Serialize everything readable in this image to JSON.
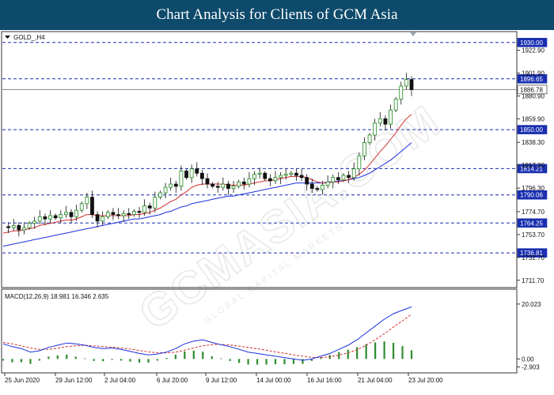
{
  "banner": {
    "title": "Chart Analysis for Clients of GCM Asia"
  },
  "chart_data": [
    {
      "type": "candlestick",
      "title": "GOLD_,H4",
      "symbol": "GOLD_",
      "timeframe": "H4",
      "ylim": [
        1705.0,
        1940.0
      ],
      "y_ticks": [
        "1922.90",
        "1901.90",
        "1880.90",
        "1859.90",
        "1838.30",
        "1817.30",
        "1796.30",
        "1774.70",
        "1753.70",
        "1732.70",
        "1711.70"
      ],
      "levels": [
        {
          "value": 1930.0,
          "label": "1930.00",
          "style": "dashed",
          "color": "#1a2fb0"
        },
        {
          "value": 1896.65,
          "label": "1896.65",
          "style": "dashed",
          "color": "#1a2fb0"
        },
        {
          "value": 1886.78,
          "label": "1886.78",
          "style": "solid",
          "color": "#888888",
          "current": true
        },
        {
          "value": 1850.0,
          "label": "1850.00",
          "style": "dashed",
          "color": "#1a2fb0"
        },
        {
          "value": 1814.21,
          "label": "1814.21",
          "style": "dashed",
          "color": "#1a2fb0"
        },
        {
          "value": 1790.06,
          "label": "1790.06",
          "style": "dashed",
          "color": "#1a2fb0"
        },
        {
          "value": 1764.25,
          "label": "1764.25",
          "style": "dashed",
          "color": "#1a2fb0"
        },
        {
          "value": 1736.81,
          "label": "1736.81",
          "style": "dashed",
          "color": "#1a2fb0"
        }
      ],
      "close_path": [
        1761,
        1760,
        1762,
        1758,
        1760,
        1764,
        1766,
        1770,
        1768,
        1771,
        1769,
        1772,
        1774,
        1770,
        1776,
        1782,
        1788,
        1772,
        1766,
        1770,
        1774,
        1772,
        1771,
        1773,
        1772,
        1775,
        1774,
        1780,
        1778,
        1788,
        1792,
        1797,
        1800,
        1798,
        1812,
        1806,
        1814,
        1810,
        1805,
        1800,
        1798,
        1797,
        1800,
        1796,
        1798,
        1802,
        1800,
        1805,
        1809,
        1810,
        1805,
        1803,
        1806,
        1808,
        1809,
        1810,
        1808,
        1806,
        1800,
        1796,
        1795,
        1799,
        1802,
        1806,
        1804,
        1808,
        1806,
        1814,
        1826,
        1838,
        1845,
        1856,
        1860,
        1855,
        1868,
        1878,
        1890,
        1896,
        1886.78
      ],
      "ma_fast": [
        1755,
        1756,
        1757,
        1757,
        1758,
        1759,
        1760,
        1762,
        1763,
        1764,
        1765,
        1766,
        1767,
        1767,
        1768,
        1770,
        1772,
        1772,
        1771,
        1771,
        1771,
        1771,
        1771,
        1771,
        1771,
        1772,
        1772,
        1773,
        1774,
        1776,
        1778,
        1781,
        1784,
        1786,
        1790,
        1793,
        1797,
        1799,
        1800,
        1800,
        1800,
        1800,
        1800,
        1799,
        1799,
        1799,
        1799,
        1800,
        1801,
        1802,
        1803,
        1803,
        1804,
        1805,
        1806,
        1807,
        1807,
        1807,
        1806,
        1804,
        1802,
        1801,
        1801,
        1802,
        1802,
        1803,
        1804,
        1806,
        1809,
        1813,
        1818,
        1824,
        1830,
        1835,
        1841,
        1847,
        1854,
        1860,
        1864
      ],
      "ma_slow": [
        1743,
        1744,
        1745,
        1746,
        1747,
        1748,
        1749,
        1750,
        1751,
        1752,
        1753,
        1754,
        1755,
        1756,
        1757,
        1758,
        1759,
        1760,
        1761,
        1762,
        1763,
        1764,
        1765,
        1766,
        1767,
        1768,
        1768,
        1769,
        1770,
        1771,
        1772,
        1774,
        1775,
        1777,
        1779,
        1780,
        1782,
        1783,
        1784,
        1785,
        1786,
        1787,
        1788,
        1789,
        1789,
        1790,
        1791,
        1792,
        1793,
        1794,
        1795,
        1796,
        1797,
        1798,
        1799,
        1800,
        1801,
        1801,
        1801,
        1801,
        1801,
        1801,
        1802,
        1802,
        1803,
        1803,
        1804,
        1805,
        1806,
        1808,
        1810,
        1813,
        1816,
        1819,
        1822,
        1826,
        1830,
        1834,
        1838
      ],
      "ma_fast_color": "#d32f2f",
      "ma_slow_color": "#1a2fe0",
      "bull_color": "#1b8a1b",
      "bear_color": "#111111",
      "x_labels": [
        "25 Jun 2020",
        "29 Jun 12:00",
        "2 Jul 04:00",
        "6 Jul 20:00",
        "9 Jul 12:00",
        "14 Jul 00:00",
        "16 Jul 16:00",
        "21 Jul 04:00",
        "23 Jul 20:00"
      ]
    },
    {
      "type": "macd",
      "title": "MACD(12,26,9) 18.981 16.346 2.635",
      "params": "12,26,9",
      "macd_value": 18.981,
      "signal_value": 16.346,
      "histogram_value": 2.635,
      "ylim": [
        -4.5,
        22.0
      ],
      "y_ticks": [
        "20.023",
        "0.00",
        "-2.903"
      ],
      "macd_line": [
        5.5,
        4.5,
        3.8,
        2.5,
        3.0,
        4.2,
        5.0,
        5.8,
        5.5,
        5.0,
        4.2,
        3.8,
        4.0,
        3.5,
        2.8,
        2.0,
        1.5,
        1.8,
        2.5,
        3.8,
        5.5,
        6.5,
        7.0,
        6.0,
        5.2,
        4.5,
        3.5,
        2.5,
        2.0,
        1.5,
        1.0,
        0.5,
        0.0,
        -0.5,
        0.0,
        1.0,
        2.0,
        3.5,
        5.0,
        7.0,
        9.5,
        12.0,
        14.5,
        16.5,
        17.8,
        18.981
      ],
      "signal_line": [
        6.0,
        5.5,
        4.8,
        4.0,
        3.5,
        3.5,
        3.9,
        4.5,
        4.8,
        5.0,
        4.8,
        4.5,
        4.3,
        4.0,
        3.6,
        3.1,
        2.6,
        2.3,
        2.2,
        2.5,
        3.2,
        4.0,
        4.8,
        5.2,
        5.3,
        5.1,
        4.7,
        4.2,
        3.7,
        3.2,
        2.6,
        2.1,
        1.5,
        1.0,
        0.6,
        0.5,
        0.8,
        1.4,
        2.2,
        3.4,
        5.0,
        7.0,
        9.2,
        11.6,
        13.9,
        16.346
      ],
      "macd_color": "#1a2fe0",
      "signal_color": "#d32f2f",
      "hist_color": "#2e8b2e"
    }
  ]
}
